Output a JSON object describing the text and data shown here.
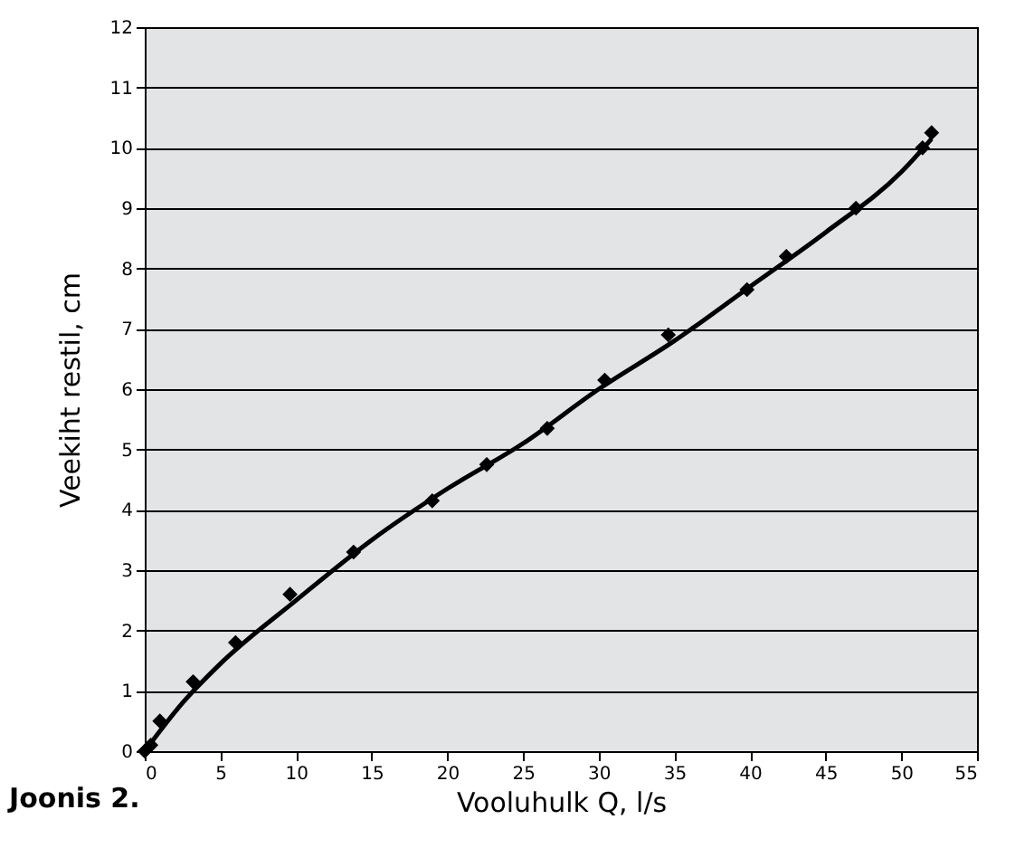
{
  "chart_data": {
    "type": "scatter",
    "xlabel": "Vooluhulk Q, l/s",
    "ylabel": "Veekiht restil, cm",
    "annotations": [
      "Joonis 2."
    ],
    "xlim": [
      0,
      55
    ],
    "xticks": [
      0,
      5,
      10,
      15,
      20,
      25,
      30,
      35,
      40,
      45,
      50,
      55
    ],
    "ylim": [
      0,
      12
    ],
    "yticks": [
      0,
      1,
      2,
      3,
      4,
      5,
      6,
      7,
      8,
      9,
      10,
      11,
      12
    ],
    "grid": "y",
    "series": [
      {
        "color": "#000000",
        "marker": "diamond",
        "x": [
          0,
          0.4,
          1,
          3.2,
          6,
          9.6,
          13.8,
          19,
          22.6,
          26.6,
          30.4,
          34.6,
          39.8,
          42.4,
          47,
          51.4,
          52
        ],
        "values": [
          0,
          0.1,
          0.5,
          1.15,
          1.8,
          2.6,
          3.3,
          4.15,
          4.75,
          5.35,
          6.15,
          6.9,
          7.65,
          8.2,
          9,
          10,
          10.25
        ]
      },
      {
        "type": "line",
        "color": "#000000",
        "marker": "none",
        "line_style": "solid",
        "x": [
          0,
          2.5,
          5,
          10,
          15,
          20,
          25,
          30,
          35,
          40,
          45,
          50,
          52
        ],
        "values": [
          0,
          0.8,
          1.45,
          2.5,
          3.5,
          4.35,
          5.1,
          6.0,
          6.8,
          7.7,
          8.6,
          9.6,
          10.15
        ]
      }
    ]
  }
}
